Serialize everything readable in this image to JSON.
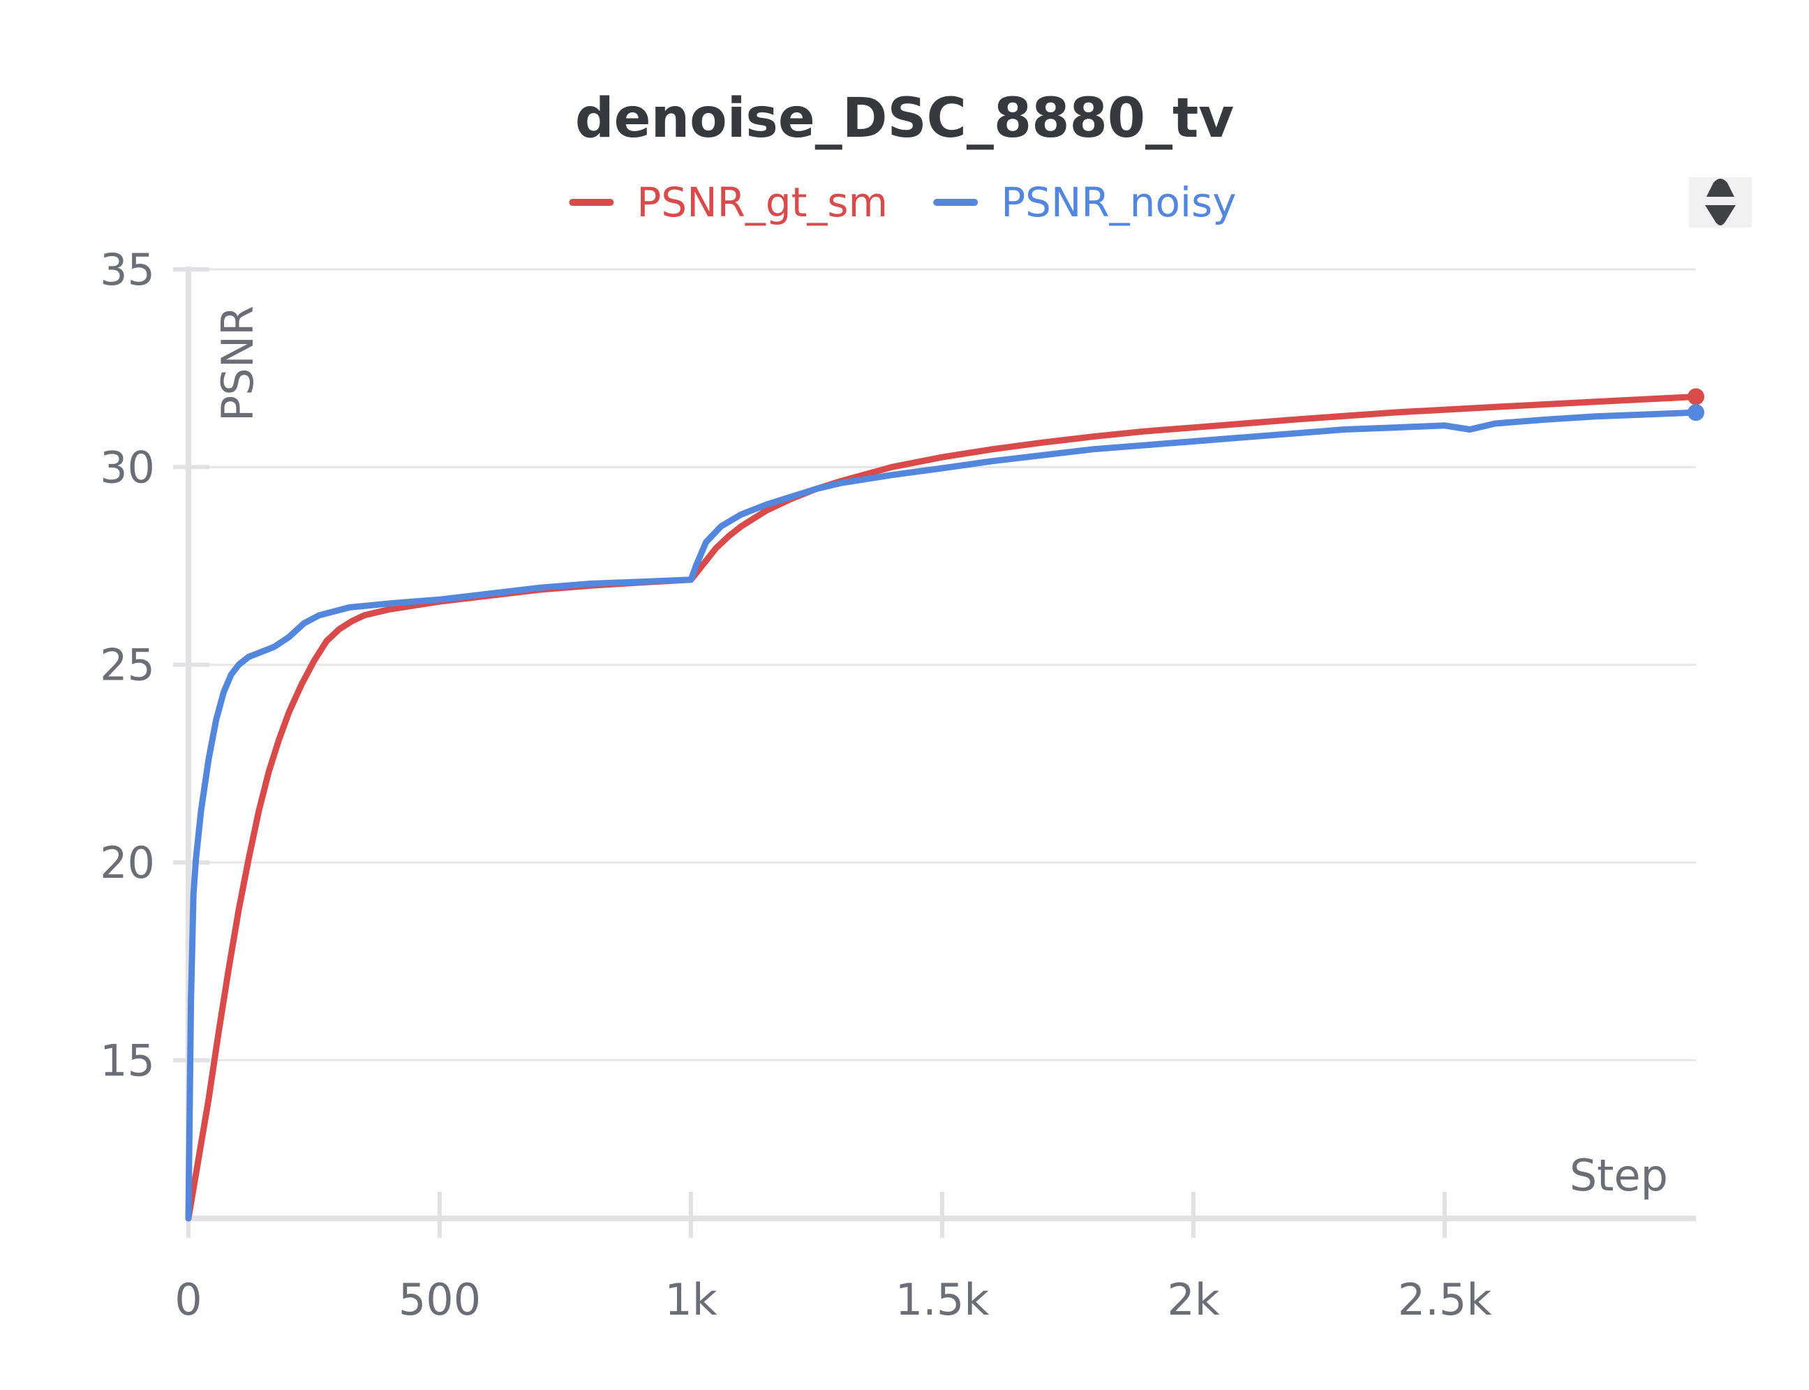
{
  "chart_data": {
    "type": "line",
    "title": "denoise_DSC_8880_tv",
    "xlabel": "Step",
    "ylabel": "PSNR",
    "xlim": [
      0,
      3000
    ],
    "ylim": [
      11,
      35
    ],
    "x_ticks": [
      0,
      500,
      1000,
      1500,
      2000,
      2500
    ],
    "x_tick_labels": [
      "0",
      "500",
      "1k",
      "1.5k",
      "2k",
      "2.5k"
    ],
    "y_ticks": [
      15,
      20,
      25,
      30,
      35
    ],
    "y_tick_labels": [
      "15",
      "20",
      "25",
      "30",
      "35"
    ],
    "grid": true,
    "legend_position": "top",
    "series": [
      {
        "name": "PSNR_gt_sm",
        "color": "#d94b4b",
        "x": [
          0,
          20,
          40,
          60,
          80,
          100,
          120,
          140,
          160,
          180,
          200,
          225,
          250,
          275,
          300,
          325,
          350,
          400,
          450,
          500,
          600,
          700,
          800,
          900,
          1000,
          1025,
          1050,
          1075,
          1100,
          1150,
          1200,
          1250,
          1300,
          1400,
          1500,
          1600,
          1700,
          1800,
          1900,
          2000,
          2200,
          2400,
          2600,
          2800,
          3000
        ],
        "values": [
          11.0,
          12.5,
          14.0,
          15.7,
          17.3,
          18.8,
          20.1,
          21.3,
          22.3,
          23.1,
          23.8,
          24.5,
          25.1,
          25.6,
          25.9,
          26.1,
          26.25,
          26.4,
          26.5,
          26.6,
          26.75,
          26.9,
          27.0,
          27.08,
          27.15,
          27.55,
          27.95,
          28.25,
          28.5,
          28.9,
          29.2,
          29.45,
          29.65,
          30.0,
          30.25,
          30.45,
          30.62,
          30.77,
          30.9,
          31.0,
          31.2,
          31.38,
          31.52,
          31.65,
          31.78
        ]
      },
      {
        "name": "PSNR_noisy",
        "color": "#5387dd",
        "x": [
          0,
          5,
          10,
          15,
          25,
          40,
          55,
          70,
          85,
          100,
          120,
          140,
          170,
          200,
          230,
          260,
          290,
          320,
          360,
          400,
          450,
          500,
          600,
          700,
          800,
          900,
          1000,
          1010,
          1030,
          1060,
          1100,
          1150,
          1200,
          1250,
          1300,
          1400,
          1500,
          1600,
          1700,
          1800,
          1900,
          2000,
          2100,
          2200,
          2300,
          2400,
          2500,
          2550,
          2600,
          2700,
          2800,
          2900,
          3000
        ],
        "values": [
          11.0,
          16.5,
          19.2,
          20.1,
          21.3,
          22.6,
          23.6,
          24.3,
          24.75,
          25.0,
          25.2,
          25.3,
          25.45,
          25.7,
          26.05,
          26.25,
          26.35,
          26.45,
          26.5,
          26.55,
          26.6,
          26.65,
          26.8,
          26.95,
          27.05,
          27.1,
          27.15,
          27.5,
          28.1,
          28.5,
          28.8,
          29.05,
          29.25,
          29.45,
          29.6,
          29.8,
          29.97,
          30.15,
          30.3,
          30.45,
          30.55,
          30.65,
          30.75,
          30.85,
          30.95,
          31.0,
          31.05,
          30.95,
          31.1,
          31.2,
          31.28,
          31.33,
          31.38
        ]
      }
    ]
  },
  "ui": {
    "sort_toggle_icon": "up-down-arrows-icon"
  }
}
